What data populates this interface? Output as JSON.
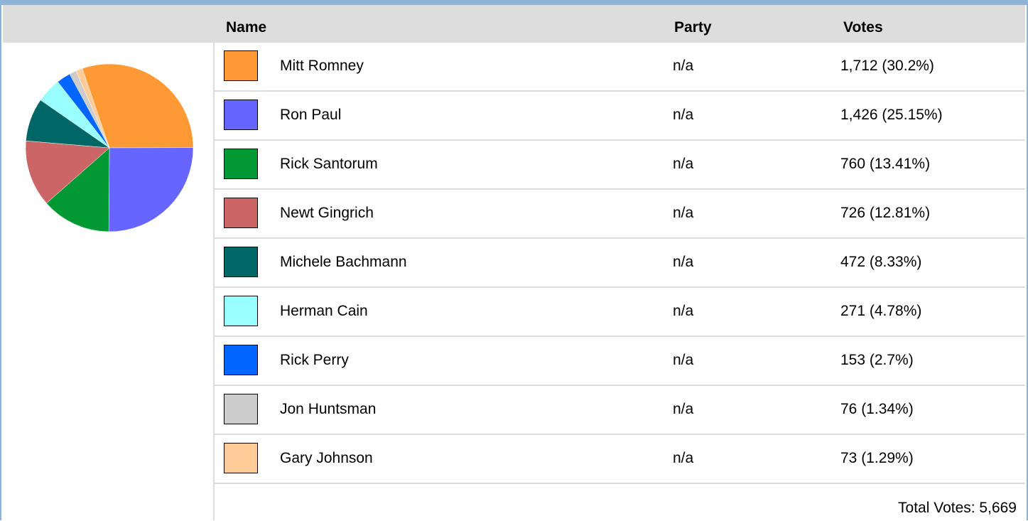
{
  "table": {
    "headers": {
      "name": "Name",
      "party": "Party",
      "votes": "Votes"
    },
    "total_text": "Total Votes: 5,669"
  },
  "chart_data": {
    "type": "pie",
    "categories": [
      "Mitt Romney",
      "Ron Paul",
      "Rick Santorum",
      "Newt Gingrich",
      "Michele Bachmann",
      "Herman Cain",
      "Rick Perry",
      "Jon Huntsman",
      "Gary Johnson"
    ],
    "values": [
      1712,
      1426,
      760,
      726,
      472,
      271,
      153,
      76,
      73
    ],
    "percents": [
      30.2,
      25.15,
      13.41,
      12.81,
      8.33,
      4.78,
      2.7,
      1.34,
      1.29
    ],
    "colors": [
      "#ff9933",
      "#6666ff",
      "#009933",
      "#cc6666",
      "#006666",
      "#99ffff",
      "#0066ff",
      "#cccccc",
      "#ffcc99"
    ],
    "total": 5669
  },
  "rows": [
    {
      "name": "Mitt Romney",
      "party": "n/a",
      "votes": "1,712 (30.2%)",
      "color": "#ff9933"
    },
    {
      "name": "Ron Paul",
      "party": "n/a",
      "votes": "1,426 (25.15%)",
      "color": "#6666ff"
    },
    {
      "name": "Rick Santorum",
      "party": "n/a",
      "votes": "760 (13.41%)",
      "color": "#009933"
    },
    {
      "name": "Newt Gingrich",
      "party": "n/a",
      "votes": "726 (12.81%)",
      "color": "#cc6666"
    },
    {
      "name": "Michele Bachmann",
      "party": "n/a",
      "votes": "472 (8.33%)",
      "color": "#006666"
    },
    {
      "name": "Herman Cain",
      "party": "n/a",
      "votes": "271 (4.78%)",
      "color": "#99ffff"
    },
    {
      "name": "Rick Perry",
      "party": "n/a",
      "votes": "153 (2.7%)",
      "color": "#0066ff"
    },
    {
      "name": "Jon Huntsman",
      "party": "n/a",
      "votes": "76 (1.34%)",
      "color": "#cccccc"
    },
    {
      "name": "Gary Johnson",
      "party": "n/a",
      "votes": "73 (1.29%)",
      "color": "#ffcc99"
    }
  ]
}
